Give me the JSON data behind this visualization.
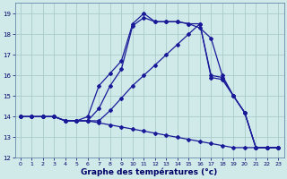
{
  "xlabel": "Graphe des températures (°c)",
  "bg_color": "#d0eaea",
  "grid_color": "#aacccc",
  "line_color": "#1a1a99",
  "xlim_min": -0.5,
  "xlim_max": 23.5,
  "ylim_min": 12,
  "ylim_max": 19.5,
  "xticks": [
    0,
    1,
    2,
    3,
    4,
    5,
    6,
    7,
    8,
    9,
    10,
    11,
    12,
    13,
    14,
    15,
    16,
    17,
    18,
    19,
    20,
    21,
    22,
    23
  ],
  "yticks": [
    12,
    13,
    14,
    15,
    16,
    17,
    18,
    19
  ],
  "line1_x": [
    0,
    1,
    2,
    3,
    4,
    5,
    6,
    7,
    8,
    9,
    10,
    11,
    12,
    13,
    14,
    15,
    16,
    17,
    18,
    19,
    20,
    21,
    22,
    23
  ],
  "line1_y": [
    14.0,
    14.0,
    14.0,
    14.0,
    13.8,
    13.8,
    14.0,
    15.5,
    16.1,
    16.7,
    18.5,
    19.0,
    18.6,
    18.6,
    18.6,
    18.5,
    18.3,
    17.8,
    16.0,
    15.0,
    14.2,
    12.5,
    12.5,
    12.5
  ],
  "line2_x": [
    0,
    1,
    2,
    3,
    4,
    5,
    6,
    7,
    8,
    9,
    10,
    11,
    12,
    13,
    14,
    15,
    16,
    17,
    18,
    19,
    20,
    21,
    22,
    23
  ],
  "line2_y": [
    14.0,
    14.0,
    14.0,
    14.0,
    13.8,
    13.8,
    13.8,
    14.4,
    15.5,
    16.3,
    18.4,
    18.8,
    18.6,
    18.6,
    18.6,
    18.5,
    18.5,
    16.0,
    15.9,
    15.0,
    14.2,
    12.5,
    12.5,
    12.5
  ],
  "line3_x": [
    0,
    1,
    2,
    3,
    4,
    5,
    6,
    7,
    8,
    9,
    10,
    11,
    12,
    13,
    14,
    15,
    16,
    17,
    18,
    19,
    20,
    21,
    22,
    23
  ],
  "line3_y": [
    14.0,
    14.0,
    14.0,
    14.0,
    13.8,
    13.8,
    13.8,
    13.8,
    14.3,
    14.9,
    15.5,
    16.0,
    16.5,
    17.0,
    17.5,
    18.0,
    18.5,
    15.9,
    15.8,
    15.0,
    14.2,
    12.5,
    12.5,
    12.5
  ],
  "line4_x": [
    0,
    1,
    2,
    3,
    4,
    5,
    6,
    7,
    8,
    9,
    10,
    11,
    12,
    13,
    14,
    15,
    16,
    17,
    18,
    19,
    20,
    21,
    22,
    23
  ],
  "line4_y": [
    14.0,
    14.0,
    14.0,
    14.0,
    13.8,
    13.8,
    13.8,
    13.7,
    13.6,
    13.5,
    13.4,
    13.3,
    13.2,
    13.1,
    13.0,
    12.9,
    12.8,
    12.7,
    12.6,
    12.5,
    12.5,
    12.5,
    12.5,
    12.5
  ]
}
